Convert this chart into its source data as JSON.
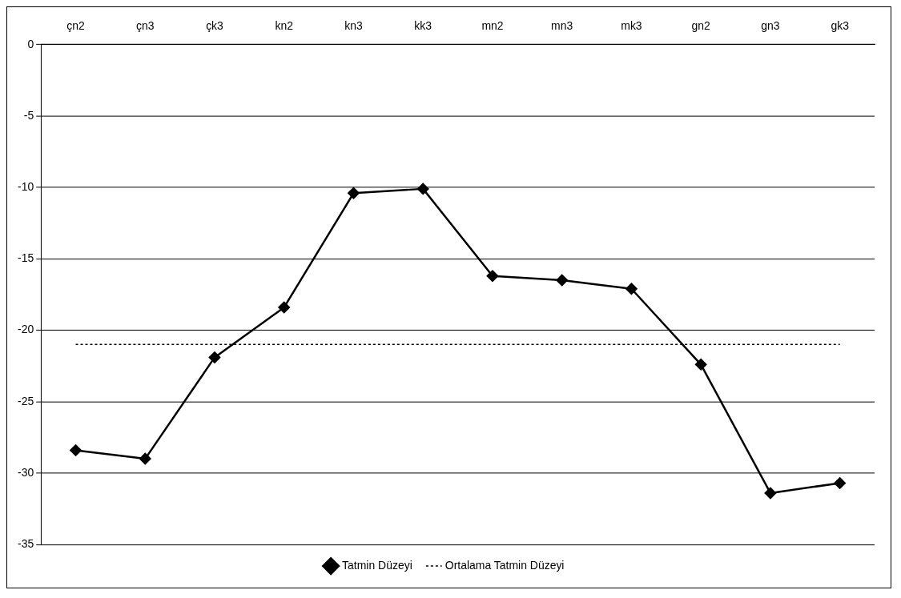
{
  "chart_data": {
    "type": "line",
    "categories": [
      "çn2",
      "çn3",
      "çk3",
      "kn2",
      "kn3",
      "kk3",
      "mn2",
      "mn3",
      "mk3",
      "gn2",
      "gn3",
      "gk3"
    ],
    "series": [
      {
        "name": "Tatmin Düzeyi",
        "color": "#000000",
        "marker": "diamond",
        "line_style": "solid",
        "values": [
          -28.4,
          -29.0,
          -21.9,
          -18.4,
          -10.4,
          -10.1,
          -16.2,
          -16.5,
          -17.1,
          -22.4,
          -31.4,
          -30.7
        ]
      },
      {
        "name": "Ortalama Tatmin Düzeyi",
        "color": "#000000",
        "marker": "none",
        "line_style": "dotted",
        "values": [
          -21,
          -21,
          -21,
          -21,
          -21,
          -21,
          -21,
          -21,
          -21,
          -21,
          -21,
          -21
        ]
      }
    ],
    "ylim": [
      -35,
      0
    ],
    "yticks": [
      -35,
      -30,
      -25,
      -20,
      -15,
      -10,
      -5,
      0
    ],
    "grid": "y",
    "legend": "bottom"
  }
}
